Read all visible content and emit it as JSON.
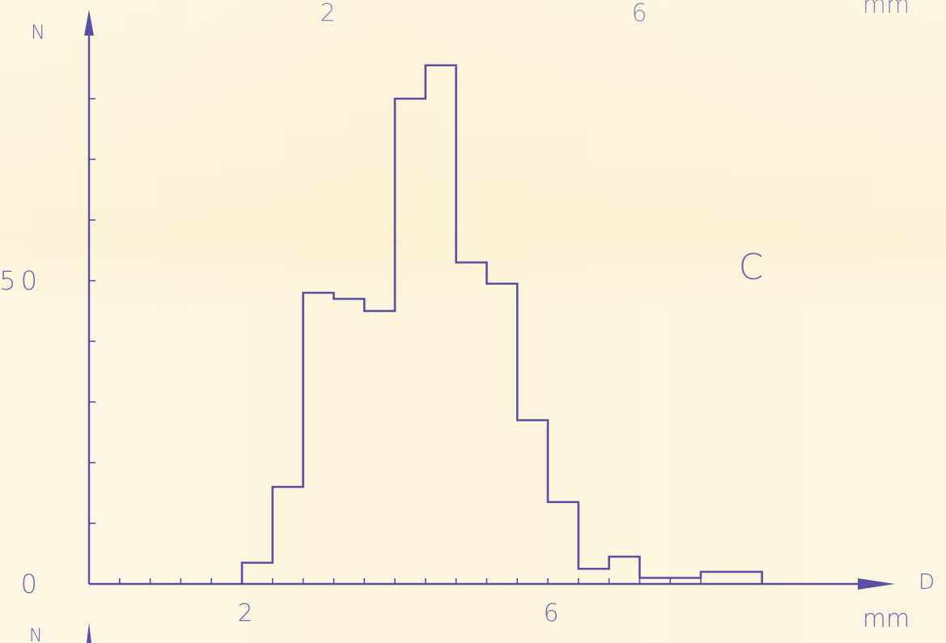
{
  "colors": {
    "ink": "#5a4fa3",
    "paper": "#fbf5dd"
  },
  "chart_data": {
    "type": "bar",
    "subtype": "step-histogram",
    "panel_label": "C",
    "ylabel": "N",
    "xlabel": "D",
    "x_unit": "mm",
    "xlim": [
      0,
      8.3
    ],
    "ylim": [
      0,
      90
    ],
    "x_ticks": [
      {
        "value": 2,
        "label": "2"
      },
      {
        "value": 6,
        "label": "6"
      }
    ],
    "y_ticks": [
      {
        "value": 0,
        "label": "0"
      },
      {
        "value": 50,
        "label": "50"
      }
    ],
    "bin_width": 0.4,
    "bin_starts": [
      2.0,
      2.4,
      2.8,
      3.2,
      3.6,
      4.0,
      4.4,
      4.8,
      5.2,
      5.6,
      6.0,
      6.4,
      6.8,
      7.2,
      7.6,
      8.0,
      8.4
    ],
    "values": [
      3.5,
      16,
      48,
      47,
      45,
      80,
      85.5,
      53,
      49.5,
      27,
      13.5,
      2.5,
      4.5,
      1,
      1,
      2,
      2
    ],
    "grid": false,
    "legend": "none"
  },
  "neighbor_axes": {
    "top_tick_labels": [
      "2",
      "6"
    ],
    "top_unit": "mm",
    "bottom_ylabel": "N"
  }
}
